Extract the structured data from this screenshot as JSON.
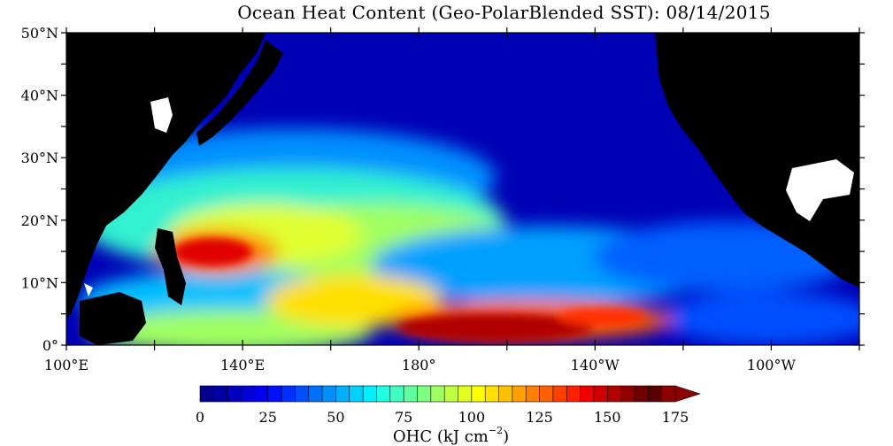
{
  "title": "Ocean Heat Content (Geo-PolarBlended SST): 08/14/2015",
  "map": {
    "lat_labels": [
      "50°N",
      "40°N",
      "30°N",
      "20°N",
      "10°N",
      "0°"
    ],
    "lon_labels": [
      "100°E",
      "140°E",
      "180°",
      "140°W",
      "100°W"
    ],
    "lat_range": [
      0,
      50
    ],
    "lon_range": [
      "100°E",
      "80°W"
    ],
    "land_color": "#000000",
    "missing_color": "#ffffff"
  },
  "colorbar": {
    "ticks": [
      "0",
      "25",
      "50",
      "75",
      "100",
      "125",
      "150",
      "175"
    ],
    "label_main": "OHC (kJ cm",
    "label_exp": "−2",
    "label_end": ")",
    "min": 0,
    "max": 175,
    "step": 5,
    "colors": [
      "#00008c",
      "#0000a5",
      "#0000be",
      "#0000d7",
      "#0000f0",
      "#0010ff",
      "#0030ff",
      "#0050ff",
      "#0070ff",
      "#0090ff",
      "#00b0ff",
      "#00d0ff",
      "#00f0ff",
      "#20ffe0",
      "#40ffc0",
      "#60ffa0",
      "#80ff80",
      "#a0ff60",
      "#c0ff40",
      "#e0ff20",
      "#ffff00",
      "#ffe000",
      "#ffc000",
      "#ffa000",
      "#ff8000",
      "#ff6000",
      "#ff4000",
      "#ff2000",
      "#f00000",
      "#d00000",
      "#b00000",
      "#900000",
      "#6e0000",
      "#5a0000",
      "#8b0000"
    ]
  }
}
